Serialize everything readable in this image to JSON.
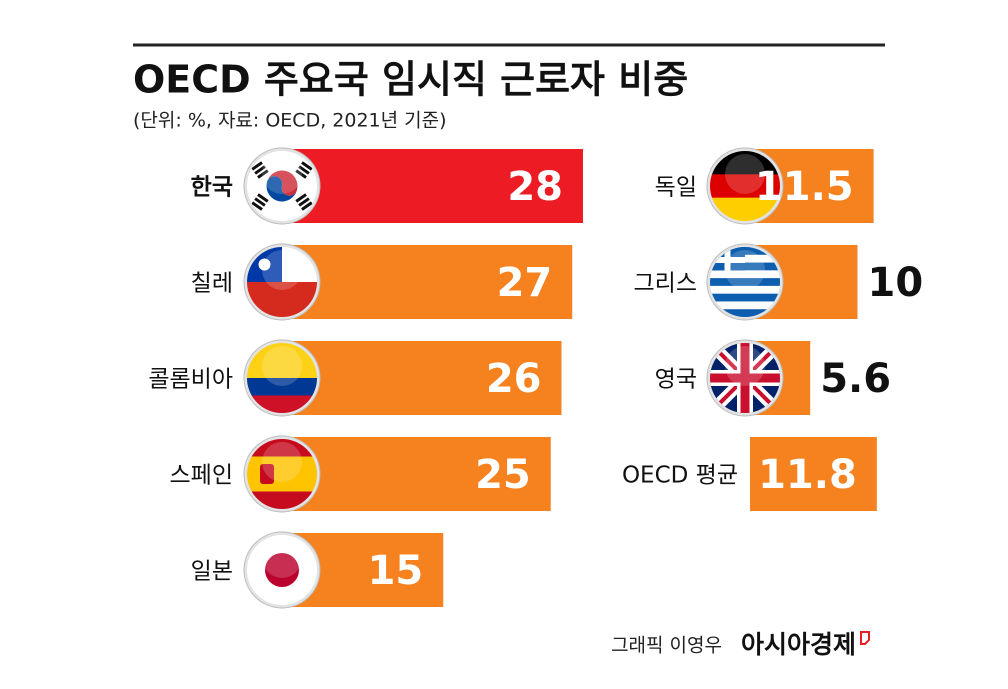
{
  "header": {
    "title": "OECD 주요국 임시직 근로자 비중",
    "subtitle": "(단위: %, 자료: OECD, 2021년 기준)"
  },
  "chart_data": [
    {
      "type": "bar",
      "orientation": "horizontal",
      "categories": [
        "한국",
        "칠레",
        "콜롬비아",
        "스페인",
        "일본"
      ],
      "values": [
        28,
        27,
        26,
        25,
        15
      ],
      "colors": [
        "#ed1c24",
        "#f5821f",
        "#f5821f",
        "#f5821f",
        "#f5821f"
      ]
    },
    {
      "type": "bar",
      "orientation": "horizontal",
      "categories": [
        "독일",
        "그리스",
        "영국",
        "OECD 평균"
      ],
      "values": [
        11.5,
        10,
        5.6,
        11.8
      ],
      "colors": [
        "#f5821f",
        "#f5821f",
        "#f5821f",
        "#f5821f"
      ]
    }
  ],
  "footer": {
    "credit": "그래픽 이영우",
    "brand": "아시아경제"
  }
}
